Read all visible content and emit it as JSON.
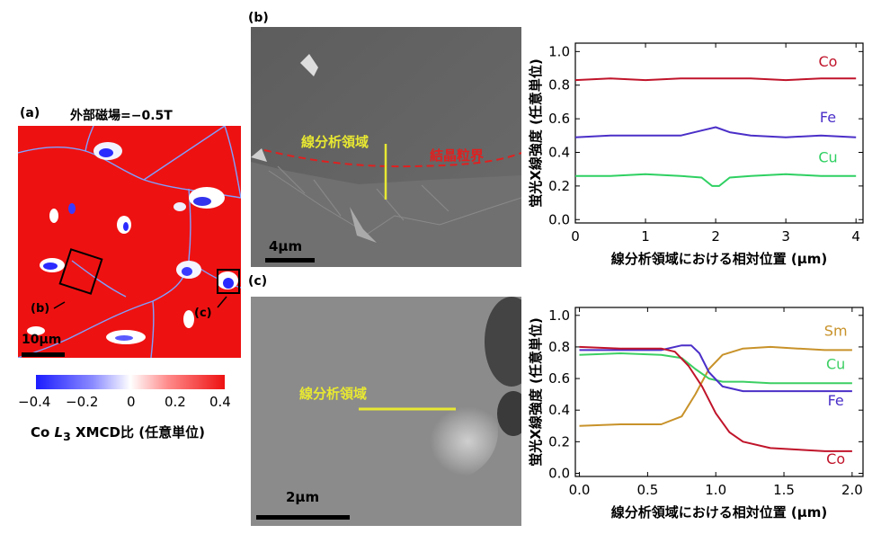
{
  "panel_a": {
    "label": "(a)",
    "title": "外部磁場=−0.5T",
    "sub_b": "(b)",
    "sub_c": "(c)",
    "scale": "10μm",
    "colorbar_ticks": [
      "−0.4",
      "−0.2",
      "0",
      "0.2",
      "0.4"
    ],
    "colorbar_title_pre": "Co ",
    "colorbar_title_L": "L",
    "colorbar_title_sub": "3",
    "colorbar_title_post": " XMCD比 (任意単位)",
    "colors": {
      "negative": "#2a2aff",
      "zero": "#ffffff",
      "positive": "#ee1111"
    }
  },
  "panel_b": {
    "label": "(b)",
    "region_label": "線分析領域",
    "boundary_label": "結晶粒界",
    "scale": "4μm",
    "colors": {
      "region": "#e8e832",
      "boundary": "#e02020"
    }
  },
  "panel_c": {
    "label": "(c)",
    "region_label": "線分析領域",
    "scale": "2μm",
    "colors": {
      "region": "#e8e832"
    }
  },
  "chart_data": [
    {
      "type": "line",
      "xlabel": "線分析領域における相対位置 (μm)",
      "ylabel": "蛍光X線強度 (任意単位)",
      "xlim": [
        0,
        4.1
      ],
      "ylim": [
        -0.02,
        1.05
      ],
      "xticks": [
        "0",
        "1",
        "2",
        "3",
        "4"
      ],
      "yticks": [
        "0.0",
        "0.2",
        "0.4",
        "0.6",
        "0.8",
        "1.0"
      ],
      "series": [
        {
          "name": "Co",
          "color": "#c0142a",
          "x": [
            0,
            0.5,
            1.0,
            1.5,
            2.0,
            2.5,
            3.0,
            3.5,
            4.0
          ],
          "y": [
            0.83,
            0.84,
            0.83,
            0.84,
            0.84,
            0.84,
            0.83,
            0.84,
            0.84
          ]
        },
        {
          "name": "Fe",
          "color": "#4b2fc8",
          "x": [
            0,
            0.5,
            1.0,
            1.5,
            1.8,
            2.0,
            2.2,
            2.5,
            3.0,
            3.5,
            4.0
          ],
          "y": [
            0.49,
            0.5,
            0.5,
            0.5,
            0.53,
            0.55,
            0.52,
            0.5,
            0.49,
            0.5,
            0.49
          ]
        },
        {
          "name": "Cu",
          "color": "#2fd062",
          "x": [
            0,
            0.5,
            1.0,
            1.5,
            1.8,
            1.95,
            2.05,
            2.2,
            2.5,
            3.0,
            3.5,
            4.0
          ],
          "y": [
            0.26,
            0.26,
            0.27,
            0.26,
            0.25,
            0.2,
            0.2,
            0.25,
            0.26,
            0.27,
            0.26,
            0.26
          ]
        }
      ]
    },
    {
      "type": "line",
      "xlabel": "線分析領域における相対位置 (μm)",
      "ylabel": "蛍光X線強度 (任意単位)",
      "xlim": [
        -0.03,
        2.08
      ],
      "ylim": [
        -0.02,
        1.05
      ],
      "xticks": [
        "0.0",
        "0.5",
        "1.0",
        "1.5",
        "2.0"
      ],
      "yticks": [
        "0.0",
        "0.2",
        "0.4",
        "0.6",
        "0.8",
        "1.0"
      ],
      "series": [
        {
          "name": "Sm",
          "color": "#c8922a",
          "x": [
            0,
            0.3,
            0.6,
            0.75,
            0.85,
            0.95,
            1.05,
            1.2,
            1.4,
            1.6,
            1.8,
            2.0
          ],
          "y": [
            0.3,
            0.31,
            0.31,
            0.36,
            0.5,
            0.66,
            0.75,
            0.79,
            0.8,
            0.79,
            0.78,
            0.78
          ]
        },
        {
          "name": "Cu",
          "color": "#3ccf63",
          "x": [
            0,
            0.3,
            0.6,
            0.75,
            0.85,
            0.95,
            1.05,
            1.2,
            1.4,
            1.6,
            1.8,
            2.0
          ],
          "y": [
            0.75,
            0.76,
            0.75,
            0.73,
            0.66,
            0.6,
            0.58,
            0.58,
            0.57,
            0.57,
            0.57,
            0.57
          ]
        },
        {
          "name": "Fe",
          "color": "#4b2fc8",
          "x": [
            0,
            0.3,
            0.6,
            0.75,
            0.82,
            0.88,
            0.95,
            1.05,
            1.2,
            1.4,
            1.6,
            1.8,
            2.0
          ],
          "y": [
            0.78,
            0.78,
            0.78,
            0.81,
            0.81,
            0.76,
            0.64,
            0.55,
            0.52,
            0.52,
            0.52,
            0.52,
            0.52
          ]
        },
        {
          "name": "Co",
          "color": "#c0142a",
          "x": [
            0,
            0.3,
            0.6,
            0.7,
            0.8,
            0.9,
            1.0,
            1.1,
            1.2,
            1.4,
            1.6,
            1.8,
            2.0
          ],
          "y": [
            0.8,
            0.79,
            0.79,
            0.77,
            0.68,
            0.55,
            0.38,
            0.26,
            0.2,
            0.16,
            0.15,
            0.14,
            0.14
          ]
        }
      ]
    }
  ]
}
